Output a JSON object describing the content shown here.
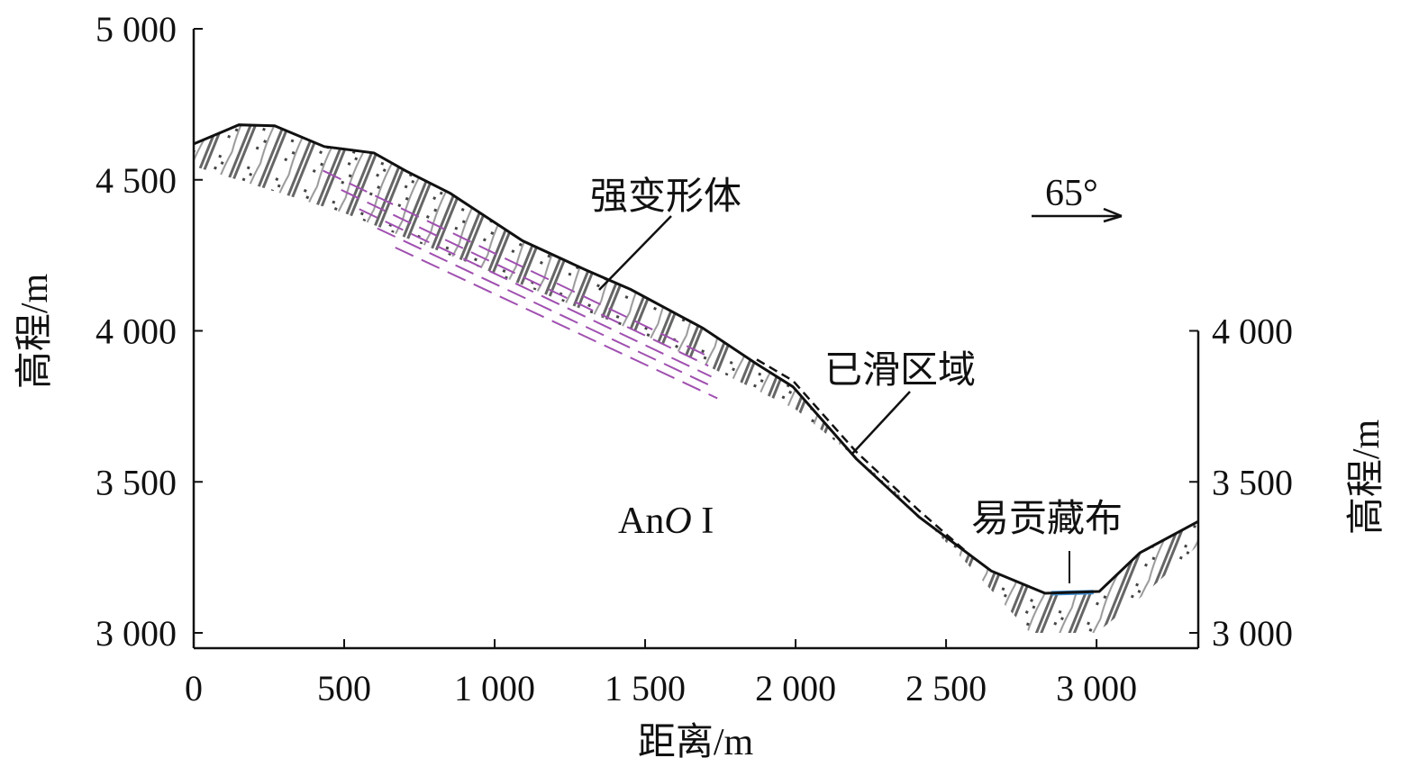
{
  "chart_data": {
    "type": "line",
    "xlabel": "距离/m",
    "ylabel_left": "高程/m",
    "ylabel_right": "高程/m",
    "xlim": [
      0,
      3338
    ],
    "ylim": [
      3000,
      5000
    ],
    "x_ticks": [
      0,
      500,
      1000,
      1500,
      2000,
      2500,
      3000
    ],
    "x_tick_labels": [
      "0",
      "500",
      "1 000",
      "1 500",
      "2 000",
      "2 500",
      "3 000"
    ],
    "y_ticks": [
      3000,
      3500,
      4000,
      4500,
      5000
    ],
    "y_tick_labels": [
      "3 000",
      "3 500",
      "4 000",
      "4 500",
      "5 000"
    ],
    "y_right_ticks": [
      3000,
      3500,
      4000
    ],
    "y_right_tick_labels": [
      "3 000",
      "3 500",
      "4 000"
    ],
    "profile": [
      [
        0,
        4619
      ],
      [
        150,
        4682
      ],
      [
        269,
        4679
      ],
      [
        434,
        4610
      ],
      [
        599,
        4589
      ],
      [
        704,
        4530
      ],
      [
        853,
        4455
      ],
      [
        1093,
        4298
      ],
      [
        1302,
        4202
      ],
      [
        1452,
        4137
      ],
      [
        1692,
        4009
      ],
      [
        1871,
        3890
      ],
      [
        1991,
        3815
      ],
      [
        2201,
        3577
      ],
      [
        2410,
        3384
      ],
      [
        2650,
        3205
      ],
      [
        2829,
        3131
      ],
      [
        3009,
        3137
      ],
      [
        3144,
        3265
      ],
      [
        3338,
        3369
      ]
    ],
    "rock_lower_boundary": [
      [
        0,
        4545
      ],
      [
        500,
        4390
      ],
      [
        1000,
        4190
      ],
      [
        1500,
        3985
      ],
      [
        2000,
        3740
      ],
      [
        2300,
        3500
      ],
      [
        2550,
        3250
      ],
      [
        2780,
        3000
      ],
      [
        3000,
        3000
      ],
      [
        3150,
        3120
      ],
      [
        3338,
        3290
      ]
    ],
    "slid_area_dashed": [
      [
        1871,
        3905
      ],
      [
        1991,
        3835
      ],
      [
        2201,
        3600
      ],
      [
        2410,
        3405
      ],
      [
        2600,
        3240
      ]
    ],
    "river_segment": [
      [
        2850,
        3131
      ],
      [
        2990,
        3135
      ]
    ]
  },
  "annotations": {
    "strong_deformation": "强变形体",
    "slid_area": "已滑区域",
    "river": "易贡藏布",
    "strata_prefix": "An",
    "strata_italic": "O",
    "strata_suffix": " I",
    "dip": "65°"
  },
  "colors": {
    "line": "#111111",
    "hatch": "#555555",
    "purple": "#a050b0",
    "river": "#3a8fd8",
    "red": "#cc2222"
  }
}
